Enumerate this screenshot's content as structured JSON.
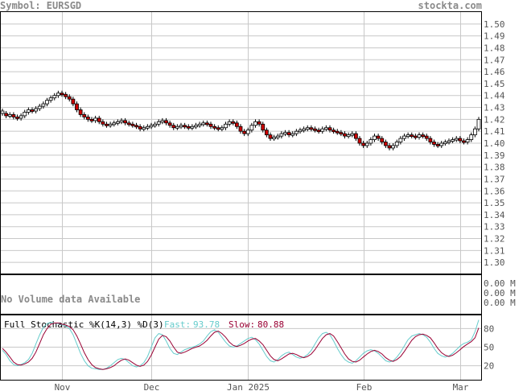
{
  "header": {
    "symbol": "Symbol: EURSGD",
    "brand": "stockta.com"
  },
  "volume": {
    "message": "No Volume data Available",
    "axis_labels": [
      "0.00 M",
      "0.00 M",
      "0.00 M"
    ]
  },
  "stochastic": {
    "title": "Full Stochastic %K(14,3) %D(3)",
    "fast_label": "Fast:",
    "fast_value": "93.78",
    "slow_label": "Slow:",
    "slow_value": "80.88"
  },
  "colors": {
    "up": "#ffffff",
    "down": "#cc0000",
    "fast": "#66cccc",
    "slow": "#990033",
    "grid": "#c8c8c8",
    "frame": "#000000"
  },
  "chart_data": [
    {
      "type": "candlestick",
      "title": "Symbol: EURSGD",
      "ylim": [
        1.29,
        1.51
      ],
      "y_ticks": [
        1.3,
        1.31,
        1.32,
        1.33,
        1.34,
        1.35,
        1.36,
        1.37,
        1.38,
        1.39,
        1.4,
        1.41,
        1.42,
        1.43,
        1.44,
        1.45,
        1.46,
        1.47,
        1.48,
        1.49,
        1.5
      ],
      "x_tick_labels": [
        "Nov",
        "Dec",
        "Jan 2025",
        "Feb",
        "Mar"
      ],
      "x_tick_index": [
        16,
        40,
        66,
        97,
        123
      ],
      "close": [
        1.425,
        1.423,
        1.424,
        1.422,
        1.421,
        1.423,
        1.426,
        1.428,
        1.427,
        1.429,
        1.431,
        1.433,
        1.436,
        1.438,
        1.44,
        1.442,
        1.441,
        1.439,
        1.437,
        1.433,
        1.428,
        1.424,
        1.422,
        1.42,
        1.419,
        1.421,
        1.418,
        1.416,
        1.415,
        1.416,
        1.417,
        1.418,
        1.419,
        1.417,
        1.416,
        1.415,
        1.414,
        1.412,
        1.413,
        1.414,
        1.415,
        1.416,
        1.418,
        1.419,
        1.417,
        1.415,
        1.413,
        1.414,
        1.415,
        1.414,
        1.413,
        1.414,
        1.415,
        1.416,
        1.417,
        1.416,
        1.414,
        1.413,
        1.412,
        1.413,
        1.416,
        1.418,
        1.417,
        1.414,
        1.41,
        1.408,
        1.411,
        1.415,
        1.418,
        1.416,
        1.411,
        1.407,
        1.404,
        1.405,
        1.406,
        1.408,
        1.409,
        1.407,
        1.408,
        1.41,
        1.411,
        1.412,
        1.413,
        1.412,
        1.411,
        1.41,
        1.412,
        1.413,
        1.411,
        1.41,
        1.409,
        1.408,
        1.406,
        1.407,
        1.408,
        1.404,
        1.4,
        1.398,
        1.4,
        1.403,
        1.406,
        1.404,
        1.401,
        1.398,
        1.396,
        1.398,
        1.401,
        1.404,
        1.406,
        1.407,
        1.406,
        1.405,
        1.407,
        1.406,
        1.404,
        1.401,
        1.399,
        1.398,
        1.4,
        1.401,
        1.402,
        1.403,
        1.404,
        1.402,
        1.401,
        1.403,
        1.407,
        1.412,
        1.42
      ],
      "direction": [
        0,
        1,
        0,
        1,
        1,
        0,
        0,
        0,
        1,
        0,
        0,
        0,
        0,
        0,
        0,
        0,
        1,
        1,
        1,
        1,
        1,
        1,
        1,
        1,
        1,
        0,
        1,
        1,
        1,
        0,
        0,
        0,
        0,
        1,
        1,
        1,
        1,
        1,
        0,
        0,
        0,
        0,
        0,
        0,
        1,
        1,
        1,
        0,
        0,
        1,
        1,
        0,
        0,
        0,
        0,
        1,
        1,
        1,
        1,
        0,
        0,
        0,
        1,
        1,
        1,
        1,
        0,
        0,
        0,
        1,
        1,
        1,
        1,
        0,
        0,
        0,
        0,
        1,
        0,
        0,
        0,
        0,
        0,
        1,
        1,
        1,
        0,
        0,
        1,
        1,
        1,
        1,
        1,
        0,
        0,
        1,
        1,
        1,
        0,
        0,
        0,
        1,
        1,
        1,
        1,
        0,
        0,
        0,
        0,
        0,
        1,
        1,
        0,
        1,
        1,
        1,
        1,
        1,
        0,
        0,
        0,
        0,
        0,
        1,
        1,
        0,
        0,
        0,
        0
      ]
    },
    {
      "type": "line",
      "title": "Full Stochastic %K(14,3) %D(3)",
      "ylim": [
        0,
        100
      ],
      "y_ticks": [
        20,
        50,
        80
      ],
      "series": [
        {
          "name": "Fast",
          "values": [
            45,
            38,
            28,
            22,
            20,
            22,
            25,
            30,
            40,
            55,
            70,
            82,
            88,
            90,
            89,
            88,
            86,
            84,
            80,
            70,
            55,
            40,
            28,
            20,
            16,
            15,
            14,
            14,
            16,
            20,
            25,
            30,
            32,
            30,
            25,
            20,
            18,
            20,
            25,
            35,
            50,
            65,
            72,
            70,
            60,
            48,
            40,
            38,
            42,
            46,
            48,
            50,
            52,
            55,
            60,
            68,
            75,
            78,
            74,
            66,
            58,
            52,
            50,
            52,
            56,
            60,
            64,
            66,
            62,
            55,
            45,
            35,
            28,
            26,
            30,
            36,
            40,
            42,
            38,
            34,
            32,
            34,
            38,
            45,
            55,
            65,
            72,
            74,
            70,
            60,
            48,
            38,
            30,
            26,
            24,
            28,
            34,
            40,
            44,
            46,
            44,
            40,
            34,
            28,
            26,
            28,
            34,
            42,
            52,
            62,
            68,
            70,
            72,
            70,
            66,
            58,
            48,
            40,
            36,
            34,
            36,
            40,
            46,
            52,
            56,
            58,
            62,
            75,
            94
          ]
        },
        {
          "name": "Slow",
          "values": [
            48,
            42,
            34,
            26,
            22,
            21,
            23,
            26,
            32,
            42,
            56,
            70,
            80,
            87,
            89,
            89,
            87,
            86,
            83,
            78,
            68,
            55,
            41,
            30,
            22,
            17,
            15,
            14,
            15,
            17,
            20,
            25,
            29,
            31,
            29,
            25,
            21,
            19,
            21,
            27,
            37,
            50,
            63,
            69,
            67,
            60,
            50,
            42,
            40,
            42,
            45,
            48,
            50,
            52,
            56,
            61,
            68,
            74,
            76,
            72,
            66,
            58,
            53,
            51,
            53,
            56,
            60,
            63,
            64,
            60,
            54,
            45,
            36,
            30,
            28,
            31,
            35,
            39,
            40,
            38,
            35,
            33,
            35,
            39,
            46,
            55,
            64,
            70,
            72,
            68,
            59,
            49,
            39,
            31,
            27,
            26,
            29,
            34,
            39,
            43,
            45,
            43,
            39,
            33,
            29,
            27,
            30,
            35,
            43,
            52,
            61,
            67,
            70,
            71,
            69,
            65,
            57,
            48,
            41,
            37,
            35,
            37,
            41,
            46,
            51,
            55,
            59,
            65,
            81
          ]
        }
      ]
    }
  ]
}
